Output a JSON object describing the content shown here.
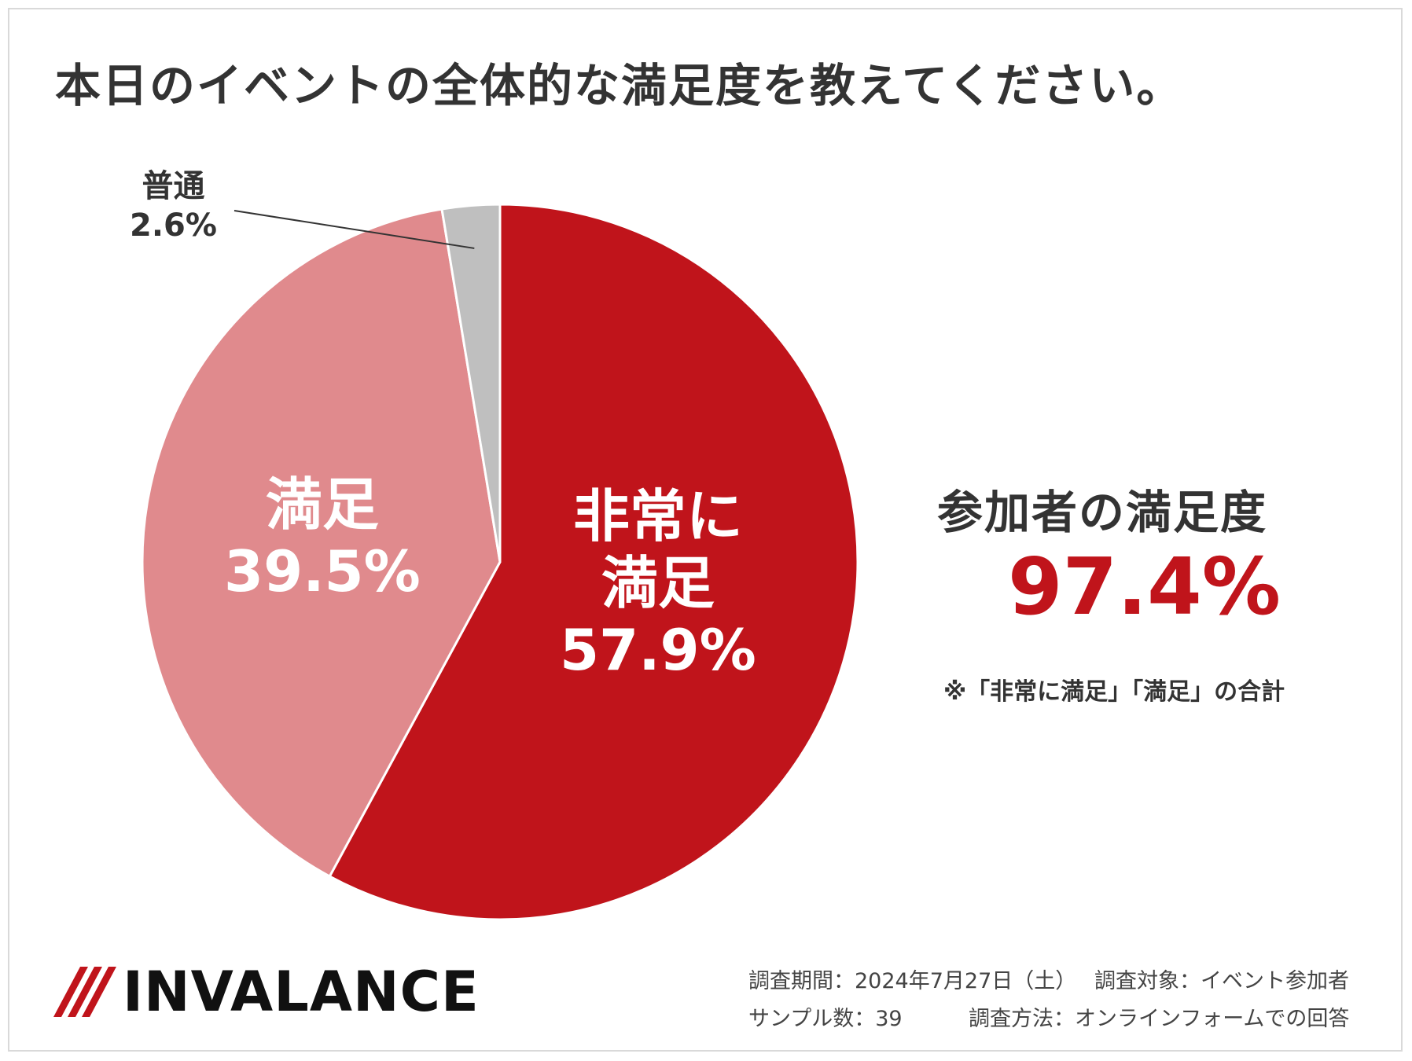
{
  "title": "本日のイベントの全体的な満足度を教えてください。",
  "chart_data": {
    "type": "pie",
    "slices": [
      {
        "label": "非常に満足",
        "value": 57.9,
        "display": "57.9%",
        "color": "#c0141b"
      },
      {
        "label": "満足",
        "value": 39.5,
        "display": "39.5%",
        "color": "#e08a8d"
      },
      {
        "label": "普通",
        "value": 2.6,
        "display": "2.6%",
        "color": "#bfbfbf"
      }
    ],
    "start": "12 o'clock",
    "direction": "clockwise"
  },
  "labels": {
    "very_satisfied_line1": "非常に",
    "very_satisfied_line2": "満足",
    "very_satisfied_value": "57.9%",
    "satisfied_line1": "満足",
    "satisfied_value": "39.5%",
    "neutral_line1": "普通",
    "neutral_value": "2.6%"
  },
  "summary": {
    "label": "参加者の満足度",
    "value": "97.4%",
    "note": "※「非常に満足」「満足」の合計"
  },
  "logo": {
    "text": "INVALANCE",
    "accent_color": "#c0141b"
  },
  "survey": {
    "period": "調査期間：2024年7月27日（土）",
    "target": "調査対象：イベント参加者",
    "sample": "サンプル数：39",
    "method": "調査方法：オンラインフォームでの回答"
  },
  "colors": {
    "accent": "#c0141b",
    "text": "#333333"
  }
}
